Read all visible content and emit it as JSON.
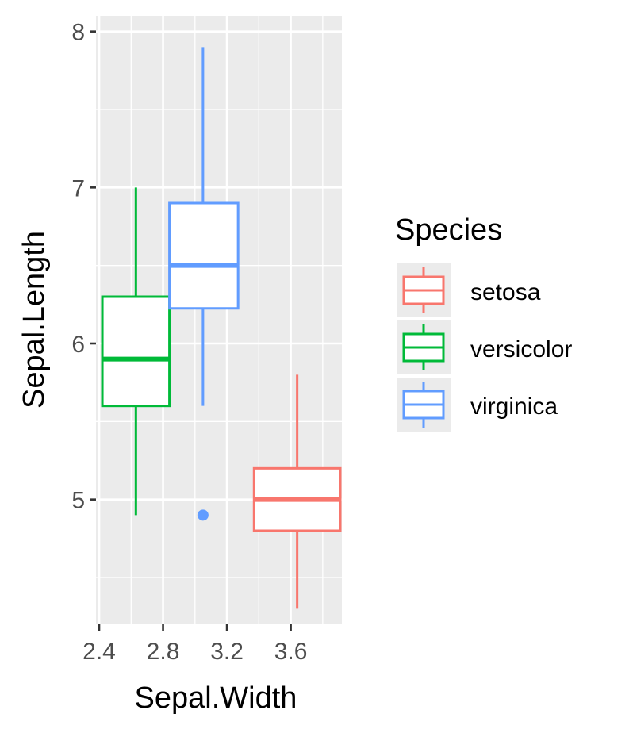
{
  "chart_data": {
    "type": "boxplot",
    "xlabel": "Sepal.Width",
    "ylabel": "Sepal.Length",
    "xlim": [
      2.38,
      3.92
    ],
    "ylim": [
      4.2,
      8.1
    ],
    "x_ticks": [
      2.4,
      2.8,
      3.2,
      3.6
    ],
    "x_tick_labels": [
      "2.4",
      "2.8",
      "3.2",
      "3.6"
    ],
    "y_ticks": [
      5,
      6,
      7,
      8
    ],
    "y_tick_labels": [
      "5",
      "6",
      "7",
      "8"
    ],
    "grid": true,
    "legend": {
      "title": "Species",
      "position": "right",
      "entries": [
        "setosa",
        "versicolor",
        "virginica"
      ]
    },
    "series": [
      {
        "name": "setosa",
        "color": "#F8766D",
        "x_min": 3.37,
        "x_max": 3.91,
        "whisker_x": 3.64,
        "whisker_low": 4.3,
        "q1": 4.8,
        "median": 5.0,
        "q3": 5.2,
        "whisker_high": 5.8,
        "outliers": []
      },
      {
        "name": "versicolor",
        "color": "#00BA38",
        "x_min": 2.42,
        "x_max": 2.84,
        "whisker_x": 2.63,
        "whisker_low": 4.9,
        "q1": 5.6,
        "median": 5.9,
        "q3": 6.3,
        "whisker_high": 7.0,
        "outliers": []
      },
      {
        "name": "virginica",
        "color": "#619CFF",
        "x_min": 2.84,
        "x_max": 3.27,
        "whisker_x": 3.05,
        "whisker_low": 5.6,
        "q1": 6.225,
        "median": 6.5,
        "q3": 6.9,
        "whisker_high": 7.9,
        "outliers": [
          4.9
        ]
      }
    ]
  }
}
